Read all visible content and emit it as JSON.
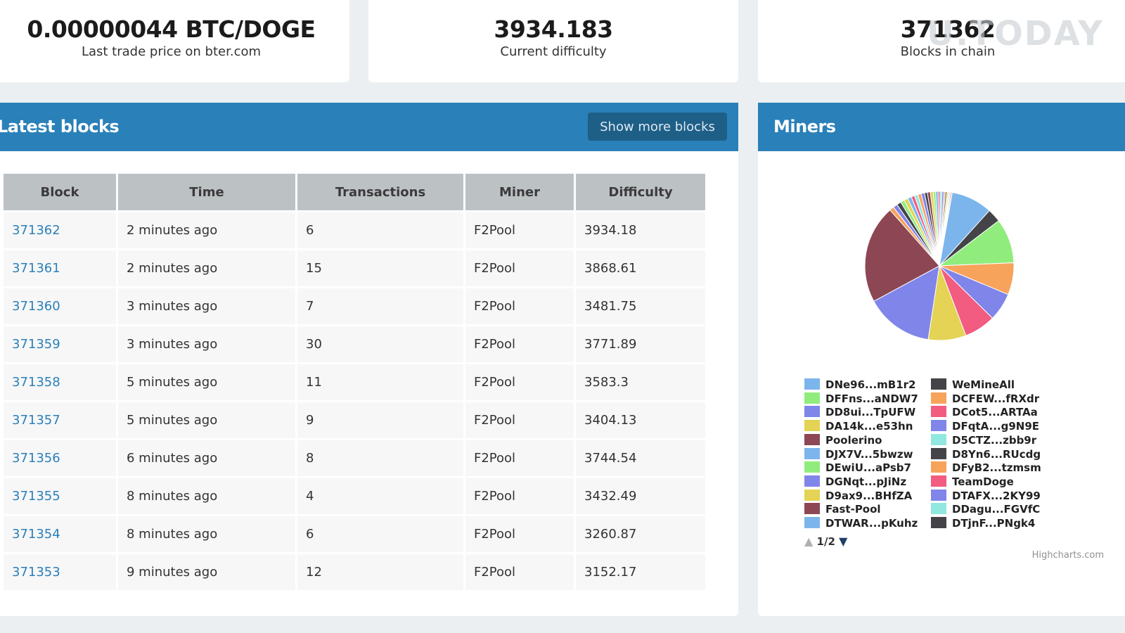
{
  "stats": {
    "price": {
      "value": "0.00000044 BTC/DOGE",
      "label": "Last trade price on bter.com"
    },
    "difficulty": {
      "value": "3934.183",
      "label": "Current difficulty"
    },
    "blocks": {
      "value": "371362",
      "label": "Blocks in chain"
    }
  },
  "watermark": "U.TODAY",
  "latest_blocks": {
    "title": "Latest blocks",
    "show_more": "Show more blocks",
    "columns": [
      "Block",
      "Time",
      "Transactions",
      "Miner",
      "Difficulty"
    ],
    "rows": [
      [
        "371362",
        "2 minutes ago",
        "6",
        "F2Pool",
        "3934.18"
      ],
      [
        "371361",
        "2 minutes ago",
        "15",
        "F2Pool",
        "3868.61"
      ],
      [
        "371360",
        "3 minutes ago",
        "7",
        "F2Pool",
        "3481.75"
      ],
      [
        "371359",
        "3 minutes ago",
        "30",
        "F2Pool",
        "3771.89"
      ],
      [
        "371358",
        "5 minutes ago",
        "11",
        "F2Pool",
        "3583.3"
      ],
      [
        "371357",
        "5 minutes ago",
        "9",
        "F2Pool",
        "3404.13"
      ],
      [
        "371356",
        "6 minutes ago",
        "8",
        "F2Pool",
        "3744.54"
      ],
      [
        "371355",
        "8 minutes ago",
        "4",
        "F2Pool",
        "3432.49"
      ],
      [
        "371354",
        "8 minutes ago",
        "6",
        "F2Pool",
        "3260.87"
      ],
      [
        "371353",
        "9 minutes ago",
        "12",
        "F2Pool",
        "3152.17"
      ]
    ]
  },
  "miners": {
    "title": "Miners",
    "pager": "1/2",
    "credits": "Highcharts.com",
    "legend_left": [
      {
        "name": "DNe96...mB1r2",
        "color": "#7cb5ec"
      },
      {
        "name": "DFFns...aNDW7",
        "color": "#90ed7d"
      },
      {
        "name": "DD8ui...TpUFW",
        "color": "#8085e9"
      },
      {
        "name": "DA14k...e53hn",
        "color": "#e4d354"
      },
      {
        "name": "Poolerino",
        "color": "#8d4653"
      },
      {
        "name": "DJX7V...5bwzw",
        "color": "#7cb5ec"
      },
      {
        "name": "DEwiU...aPsb7",
        "color": "#90ed7d"
      },
      {
        "name": "DGNqt...pJiNz",
        "color": "#8085e9"
      },
      {
        "name": "D9ax9...BHfZA",
        "color": "#e4d354"
      },
      {
        "name": "Fast-Pool",
        "color": "#8d4653"
      },
      {
        "name": "DTWAR...pKuhz",
        "color": "#7cb5ec"
      }
    ],
    "legend_right": [
      {
        "name": "WeMineAll",
        "color": "#434348"
      },
      {
        "name": "DCFEW...fRXdr",
        "color": "#f7a35c"
      },
      {
        "name": "DCot5...ARTAa",
        "color": "#f15c80"
      },
      {
        "name": "DFqtA...g9N9E",
        "color": "#8085e9"
      },
      {
        "name": "D5CTZ...zbb9r",
        "color": "#91e8e1"
      },
      {
        "name": "D8Yn6...RUcdg",
        "color": "#434348"
      },
      {
        "name": "DFyB2...tzmsm",
        "color": "#f7a35c"
      },
      {
        "name": "TeamDoge",
        "color": "#f15c80"
      },
      {
        "name": "DTAFX...2KY99",
        "color": "#8085e9"
      },
      {
        "name": "DDagu...FGVfC",
        "color": "#91e8e1"
      },
      {
        "name": "DTjnF...PNgk4",
        "color": "#434348"
      }
    ]
  },
  "chart_data": {
    "type": "pie",
    "title": "",
    "slices": [
      {
        "label": "",
        "value": 8.5,
        "color": "#7cb5ec"
      },
      {
        "label": "",
        "value": 2.8,
        "color": "#434348"
      },
      {
        "label": "",
        "value": 9.2,
        "color": "#90ed7d"
      },
      {
        "label": "",
        "value": 6.6,
        "color": "#f7a35c"
      },
      {
        "label": "",
        "value": 5.8,
        "color": "#8085e9"
      },
      {
        "label": "",
        "value": 6.5,
        "color": "#f15c80"
      },
      {
        "label": "",
        "value": 7.8,
        "color": "#e4d354"
      },
      {
        "label": "",
        "value": 14.0,
        "color": "#8085e9"
      },
      {
        "label": "",
        "value": 20.3,
        "color": "#8d4653"
      },
      {
        "label": "",
        "value": 0.9,
        "color": "#f7a35c"
      },
      {
        "label": "",
        "value": 0.9,
        "color": "#8085e9"
      },
      {
        "label": "",
        "value": 0.9,
        "color": "#434348"
      },
      {
        "label": "",
        "value": 0.8,
        "color": "#90ed7d"
      },
      {
        "label": "",
        "value": 0.8,
        "color": "#e4d354"
      },
      {
        "label": "",
        "value": 0.8,
        "color": "#7cb5ec"
      },
      {
        "label": "",
        "value": 0.7,
        "color": "#f15c80"
      },
      {
        "label": "",
        "value": 0.7,
        "color": "#91e8e1"
      },
      {
        "label": "",
        "value": 0.7,
        "color": "#f7a35c"
      },
      {
        "label": "",
        "value": 0.7,
        "color": "#8085e9"
      },
      {
        "label": "",
        "value": 0.6,
        "color": "#434348"
      },
      {
        "label": "",
        "value": 0.6,
        "color": "#8d4653"
      },
      {
        "label": "",
        "value": 0.6,
        "color": "#e4d354"
      },
      {
        "label": "",
        "value": 0.5,
        "color": "#90ed7d"
      },
      {
        "label": "",
        "value": 0.5,
        "color": "#7cb5ec"
      },
      {
        "label": "",
        "value": 0.4,
        "color": "#f15c80"
      },
      {
        "label": "",
        "value": 0.4,
        "color": "#91e8e1"
      },
      {
        "label": "",
        "value": 0.4,
        "color": "#8085e9"
      },
      {
        "label": "",
        "value": 0.3,
        "color": "#f7a35c"
      },
      {
        "label": "",
        "value": 0.3,
        "color": "#434348"
      },
      {
        "label": "",
        "value": 0.3,
        "color": "#e4d354"
      },
      {
        "label": "",
        "value": 0.2,
        "color": "#90ed7d"
      },
      {
        "label": "",
        "value": 0.2,
        "color": "#7cb5ec"
      },
      {
        "label": "",
        "value": 0.2,
        "color": "#8d4653"
      },
      {
        "label": "",
        "value": 0.2,
        "color": "#f15c80"
      }
    ]
  }
}
